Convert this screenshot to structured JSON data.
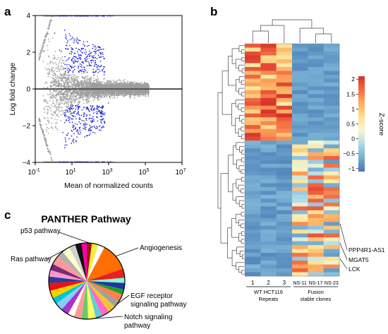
{
  "panels": {
    "a": {
      "letter": "a"
    },
    "b": {
      "letter": "b"
    },
    "c": {
      "letter": "c"
    }
  },
  "chart_data": [
    {
      "panel": "a",
      "type": "scatter",
      "title": "",
      "xlabel": "Mean of normalized counts",
      "ylabel": "Log fold change",
      "x_scale": "log10",
      "xlim": [
        0.1,
        10000000
      ],
      "ylim": [
        -4,
        4
      ],
      "x_ticks": [
        {
          "value": 0.1,
          "base": "10",
          "exp": "-1"
        },
        {
          "value": 10,
          "base": "10",
          "exp": "1"
        },
        {
          "value": 1000,
          "base": "10",
          "exp": "3"
        },
        {
          "value": 100000,
          "base": "10",
          "exp": "5"
        },
        {
          "value": 10000000,
          "base": "10",
          "exp": "7"
        }
      ],
      "y_ticks": [
        {
          "value": 4,
          "label": "4"
        },
        {
          "value": 2,
          "label": "2"
        },
        {
          "value": 0,
          "label": "0"
        },
        {
          "value": -2,
          "label": "−2"
        },
        {
          "value": -4,
          "label": "−4"
        }
      ],
      "reference_line": 0,
      "series": [
        {
          "color": "#9e9e9e",
          "description": "not significant"
        },
        {
          "color": "#1f22d8",
          "description": "significant"
        }
      ],
      "colors": {
        "nonsig": "#9e9e9e",
        "sig": "#1f22d8",
        "zero_line": "#555555"
      }
    },
    {
      "panel": "b",
      "type": "heatmap",
      "title": "",
      "color_scale": {
        "label": "Z-score",
        "min": -1.1,
        "max": 2.1,
        "ticks": [
          {
            "value": 2,
            "label": "2"
          },
          {
            "value": 1.5,
            "label": "1.5"
          },
          {
            "value": 1,
            "label": "1"
          },
          {
            "value": 0.5,
            "label": "0.5"
          },
          {
            "value": 0,
            "label": "0"
          },
          {
            "value": -0.5,
            "label": "−0.5"
          },
          {
            "value": -1,
            "label": "−1"
          }
        ],
        "stops": [
          "#4575b4",
          "#74add1",
          "#abd9e9",
          "#f7f7cf",
          "#fee090",
          "#fdae61",
          "#f46d43",
          "#d73027"
        ]
      },
      "columns": [
        "1",
        "2",
        "3",
        "NS-11",
        "NS-17",
        "NS-23"
      ],
      "groups": [
        {
          "label_lines": [
            "WT HCT116",
            "Repeats"
          ],
          "columns": [
            0,
            1,
            2
          ]
        },
        {
          "label_lines": [
            "Fusion",
            "stable clones"
          ],
          "columns": [
            3,
            4,
            5
          ]
        }
      ],
      "row_count": 60,
      "row_blocks": [
        {
          "rows": 25,
          "pattern": "high in WT HCT116 repeats, low in fusion stable clones"
        },
        {
          "rows": 35,
          "pattern": "low in WT HCT116 repeats, high in fusion stable clones"
        }
      ],
      "annotated_genes": [
        "PPP4R1-AS1",
        "MGAT5",
        "LCK"
      ]
    },
    {
      "panel": "c",
      "type": "pie",
      "title": "PANTHER Pathway",
      "labels": [
        {
          "text": [
            "p53 pathway"
          ]
        },
        {
          "text": [
            "Angiogenesis"
          ]
        },
        {
          "text": [
            "Ras pathway"
          ]
        },
        {
          "text": [
            "EGF receptor",
            "signaling pathway"
          ]
        },
        {
          "text": [
            "Notch signaling",
            "pathway"
          ]
        }
      ],
      "slices": [
        {
          "value": 2.0,
          "color": "#a31515"
        },
        {
          "value": 2.5,
          "color": "#f4ec3c"
        },
        {
          "value": 2.5,
          "color": "#ffffff"
        },
        {
          "value": 11.0,
          "color": "#ff6e00"
        },
        {
          "value": 3.5,
          "color": "#e82020"
        },
        {
          "value": 2.0,
          "color": "#7fffd4"
        },
        {
          "value": 2.5,
          "color": "#2233aa"
        },
        {
          "value": 2.0,
          "color": "#20a020"
        },
        {
          "value": 3.0,
          "color": "#ff7f50"
        },
        {
          "value": 2.5,
          "color": "#a0a0a0"
        },
        {
          "value": 3.0,
          "color": "#f4c430"
        },
        {
          "value": 3.0,
          "color": "#ff66cc"
        },
        {
          "value": 2.5,
          "color": "#5ecfd2"
        },
        {
          "value": 3.0,
          "color": "#ffff66"
        },
        {
          "value": 2.5,
          "color": "#66cc66"
        },
        {
          "value": 3.0,
          "color": "#ff9999"
        },
        {
          "value": 2.5,
          "color": "#ffffff"
        },
        {
          "value": 3.0,
          "color": "#aa33cc"
        },
        {
          "value": 3.0,
          "color": "#87cefa"
        },
        {
          "value": 2.5,
          "color": "#00c8c8"
        },
        {
          "value": 3.0,
          "color": "#ffcc00"
        },
        {
          "value": 3.0,
          "color": "#ee1111"
        },
        {
          "value": 2.5,
          "color": "#2a3aa0"
        },
        {
          "value": 2.5,
          "color": "#ff99cc"
        },
        {
          "value": 2.5,
          "color": "#7a2a7a"
        },
        {
          "value": 3.5,
          "color": "#ff9999"
        },
        {
          "value": 2.5,
          "color": "#b0b0b0"
        },
        {
          "value": 3.0,
          "color": "#ffffcc"
        },
        {
          "value": 2.5,
          "color": "#d0d0d0"
        },
        {
          "value": 2.5,
          "color": "#111111"
        },
        {
          "value": 2.0,
          "color": "#ff00aa"
        }
      ],
      "colors": {
        "outline": "#000000"
      }
    }
  ]
}
